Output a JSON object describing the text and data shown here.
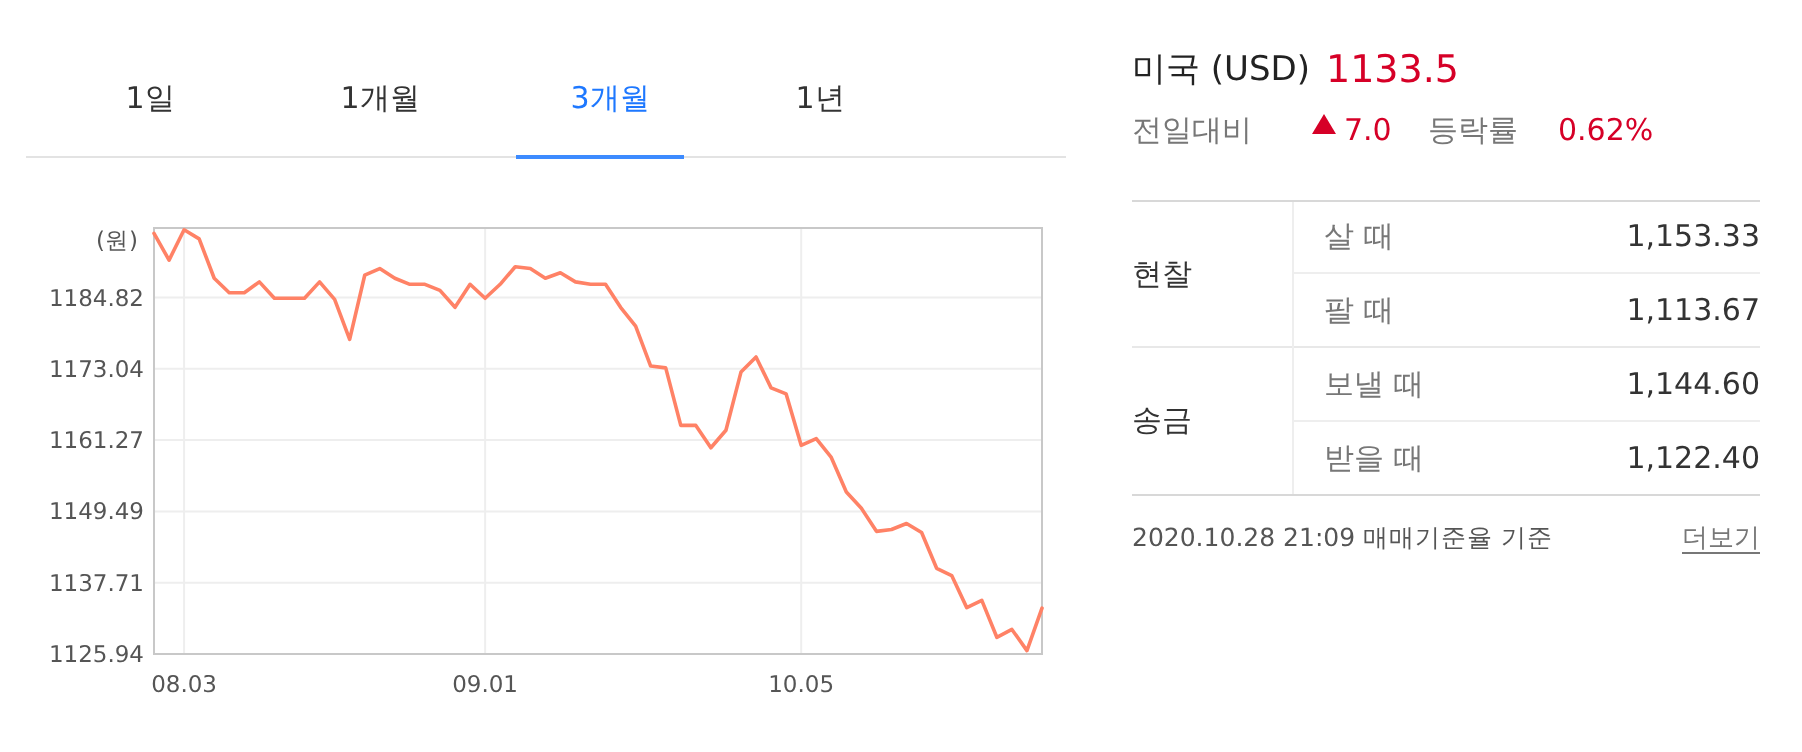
{
  "chart_data": [
    {
      "type": "line",
      "ylabel": "(원)",
      "annotations": [
        "1일",
        "1개월",
        "3개월",
        "1년"
      ],
      "categories": [
        null,
        null,
        "08.03",
        null,
        null,
        null,
        null,
        null,
        null,
        null,
        null,
        null,
        null,
        null,
        null,
        null,
        null,
        null,
        null,
        null,
        null,
        null,
        "09.01",
        null,
        null,
        null,
        null,
        null,
        null,
        null,
        null,
        null,
        null,
        null,
        null,
        null,
        null,
        null,
        null,
        null,
        null,
        null,
        null,
        "10.05",
        null,
        null,
        null,
        null,
        null,
        null,
        null,
        null,
        null,
        null,
        null,
        null,
        null,
        null,
        null,
        null
      ],
      "series": [
        {
          "color": "#ff8266",
          "values": [
            1195.4,
            1191.0,
            1196.0,
            1194.5,
            1188.0,
            1185.6,
            1185.6,
            1187.4,
            1184.7,
            1184.7,
            1184.7,
            1187.4,
            1184.5,
            1177.9,
            1188.5,
            1189.6,
            1188.0,
            1187.0,
            1187.0,
            1186.0,
            1183.2,
            1187.0,
            1184.7,
            1187.0,
            1189.9,
            1189.6,
            1188.0,
            1188.9,
            1187.4,
            1187.0,
            1187.0,
            1183.2,
            1180.1,
            1173.5,
            1173.2,
            1163.7,
            1163.7,
            1160.0,
            1162.9,
            1172.5,
            1175.0,
            1169.9,
            1168.9,
            1160.4,
            1161.5,
            1158.4,
            1152.7,
            1150.0,
            1146.2,
            1146.5,
            1147.5,
            1146.0,
            1140.1,
            1138.9,
            1133.6,
            1134.8,
            1128.7,
            1130.0,
            1126.5,
            1133.5
          ]
        }
      ],
      "ylim": [
        1125.94,
        1196.3
      ],
      "yticks": [
        1125.94,
        1137.71,
        1149.49,
        1161.27,
        1173.04,
        1184.82
      ],
      "grid": true,
      "marker": "none",
      "line_style": "solid",
      "legend": false
    },
    {
      "type": "other",
      "title": "미국 (USD)",
      "annotations": [
        "1133.5",
        "전일대비",
        "7.0",
        "등락률",
        "0.62%",
        "현찰",
        "살 때",
        "1,153.33",
        "팔 때",
        "1,113.67",
        "송금",
        "보낼 때",
        "1,144.60",
        "받을 때",
        "1,122.40",
        "2020.10.28 21:09 매매기준율 기준",
        "더보기"
      ]
    }
  ]
}
